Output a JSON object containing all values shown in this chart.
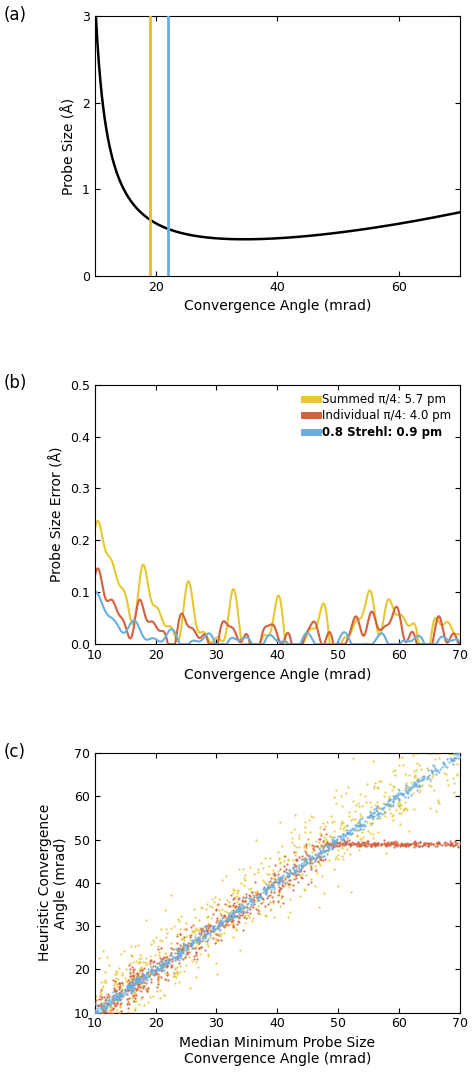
{
  "panel_a": {
    "title": "(a)",
    "ylabel": "Probe Size (Å)",
    "xlabel": "Convergence Angle (mrad)",
    "xlim": [
      10,
      70
    ],
    "ylim": [
      0,
      3
    ],
    "yticks": [
      0,
      1,
      2,
      3
    ],
    "xticks": [
      20,
      40,
      60
    ],
    "vline1_x": 19.0,
    "vline1_color": "#E8B832",
    "vline2_x": 22.0,
    "vline2_color": "#6aaee0"
  },
  "panel_b": {
    "title": "(b)",
    "ylabel": "Probe Size Error (Å)",
    "xlabel": "Convergence Angle (mrad)",
    "xlim": [
      10,
      70
    ],
    "ylim": [
      0,
      0.5
    ],
    "yticks": [
      0,
      0.1,
      0.2,
      0.3,
      0.4,
      0.5
    ],
    "xticks": [
      10,
      20,
      30,
      40,
      50,
      60,
      70
    ]
  },
  "panel_c": {
    "title": "(c)",
    "ylabel": "Heuristic Convergence\nAngle (mrad)",
    "xlabel": "Median Minimum Probe Size\nConvergence Angle (mrad)",
    "xlim": [
      10,
      70
    ],
    "ylim": [
      10,
      70
    ],
    "xticks": [
      10,
      20,
      30,
      40,
      50,
      60,
      70
    ],
    "yticks": [
      10,
      20,
      30,
      40,
      50,
      60,
      70
    ]
  },
  "yellow_color": "#E8C832",
  "orange_color": "#D4603C",
  "blue_color": "#6aaee0",
  "curve_color": "#000000"
}
